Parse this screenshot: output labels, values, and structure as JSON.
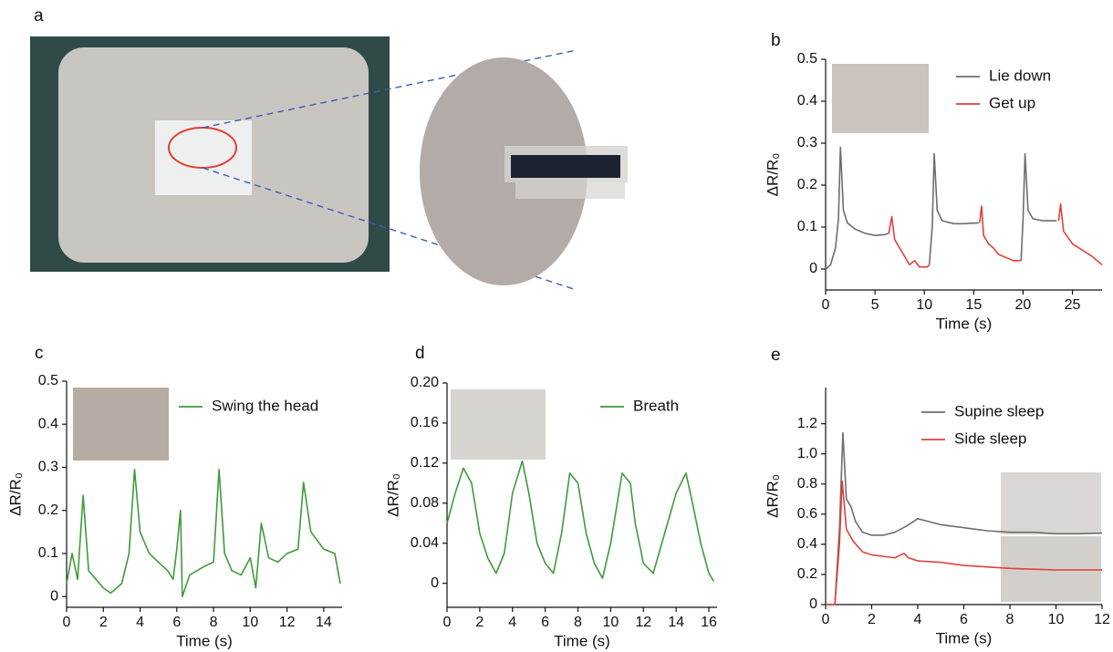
{
  "panel_a": {
    "label": "a"
  },
  "chart_data": [
    {
      "type": "line",
      "panel": "b",
      "xlabel": "Time (s)",
      "ylabel": "ΔR/R₀",
      "xlim": [
        0,
        28
      ],
      "xticks": [
        0,
        5,
        10,
        15,
        20,
        25
      ],
      "ylim": [
        -0.05,
        0.5
      ],
      "yticks": [
        0,
        0.1,
        0.2,
        0.3,
        0.4,
        0.5
      ],
      "series": [
        {
          "name": "Lie down",
          "color": "#6d6d6d",
          "x": [
            0,
            0.5,
            1.0,
            1.3,
            1.5,
            1.8,
            2.2,
            3,
            4,
            5,
            6,
            6.4,
            8,
            10.5,
            10.8,
            11.0,
            11.3,
            11.8,
            13,
            14,
            15.5,
            17,
            19.8,
            20.0,
            20.2,
            20.5,
            21,
            22,
            23.4
          ],
          "values": [
            0,
            0.01,
            0.05,
            0.12,
            0.29,
            0.14,
            0.11,
            0.095,
            0.085,
            0.08,
            0.082,
            0.085,
            null,
            0.01,
            0.1,
            0.275,
            0.14,
            0.115,
            0.108,
            0.108,
            0.11,
            null,
            0.02,
            0.12,
            0.275,
            0.14,
            0.12,
            0.115,
            0.115
          ]
        },
        {
          "name": "Get up",
          "color": "#e0413a",
          "x": [
            6.4,
            6.7,
            7.0,
            7.5,
            8,
            8.5,
            9,
            9.5,
            10.3,
            10.5,
            13,
            15.6,
            15.8,
            16,
            16.5,
            17,
            17.5,
            18,
            19,
            19.8,
            21.5,
            23.6,
            23.8,
            24.1,
            25,
            26,
            27,
            28
          ],
          "values": [
            0.085,
            0.125,
            0.07,
            0.05,
            0.03,
            0.01,
            0.02,
            0.005,
            0.005,
            0.01,
            null,
            0.11,
            0.15,
            0.08,
            0.06,
            0.05,
            0.035,
            0.03,
            0.02,
            0.02,
            null,
            0.115,
            0.155,
            0.09,
            0.06,
            0.045,
            0.03,
            0.01
          ]
        }
      ]
    },
    {
      "type": "line",
      "panel": "c",
      "xlabel": "Time (s)",
      "ylabel": "ΔR/R₀",
      "xlim": [
        0,
        15
      ],
      "xticks": [
        0,
        2,
        4,
        6,
        8,
        10,
        12,
        14
      ],
      "ylim": [
        -0.025,
        0.5
      ],
      "yticks": [
        0,
        0.1,
        0.2,
        0.3,
        0.4,
        0.5
      ],
      "series": [
        {
          "name": "Swing the head",
          "color": "#3f9a3a",
          "x": [
            0,
            0.3,
            0.6,
            0.9,
            1.2,
            1.6,
            2,
            2.4,
            3,
            3.4,
            3.7,
            4,
            4.5,
            5,
            5.5,
            5.8,
            6.0,
            6.2,
            6.3,
            6.7,
            7.5,
            8,
            8.3,
            8.6,
            9,
            9.5,
            10,
            10.3,
            10.6,
            11,
            11.5,
            12,
            12.6,
            12.9,
            13.3,
            14,
            14.6,
            14.9
          ],
          "values": [
            0.03,
            0.1,
            0.04,
            0.235,
            0.06,
            0.04,
            0.02,
            0.008,
            0.03,
            0.1,
            0.295,
            0.15,
            0.1,
            0.08,
            0.06,
            0.04,
            0.11,
            0.2,
            0.0,
            0.05,
            0.07,
            0.08,
            0.295,
            0.1,
            0.06,
            0.05,
            0.09,
            0.02,
            0.17,
            0.09,
            0.08,
            0.1,
            0.11,
            0.265,
            0.15,
            0.11,
            0.1,
            0.03
          ]
        }
      ]
    },
    {
      "type": "line",
      "panel": "d",
      "xlabel": "Time (s)",
      "ylabel": "ΔR/R₀",
      "xlim": [
        0,
        16.5
      ],
      "xticks": [
        0,
        2,
        4,
        6,
        8,
        10,
        12,
        14,
        16
      ],
      "ylim": [
        -0.024,
        0.2
      ],
      "yticks": [
        0,
        0.04,
        0.08,
        0.12,
        0.16,
        {
          "value": 0.2,
          "label": "0.20"
        }
      ],
      "series": [
        {
          "name": "Breath",
          "color": "#3f9a3a",
          "x": [
            0,
            0.5,
            1,
            1.5,
            2,
            2.5,
            3,
            3.5,
            4,
            4.6,
            5,
            5.5,
            6,
            6.5,
            7,
            7.5,
            8,
            8.5,
            9,
            9.5,
            10,
            10.7,
            11.2,
            11.5,
            12,
            12.6,
            13.3,
            14,
            14.6,
            15,
            15.5,
            16,
            16.3
          ],
          "values": [
            0.06,
            0.09,
            0.115,
            0.1,
            0.05,
            0.025,
            0.01,
            0.03,
            0.09,
            0.122,
            0.09,
            0.04,
            0.02,
            0.01,
            0.05,
            0.11,
            0.1,
            0.05,
            0.02,
            0.005,
            0.04,
            0.11,
            0.1,
            0.06,
            0.02,
            0.01,
            0.05,
            0.09,
            0.11,
            0.08,
            0.04,
            0.01,
            0.002
          ]
        }
      ]
    },
    {
      "type": "line",
      "panel": "e",
      "xlabel": "Time (s)",
      "ylabel": "ΔR/R₀",
      "xlim": [
        0,
        12
      ],
      "xticks": [
        0,
        2,
        4,
        6,
        8,
        10,
        12
      ],
      "ylim": [
        0,
        1.44
      ],
      "yticks": [
        0,
        0.2,
        0.4,
        0.6,
        0.8,
        {
          "value": 1,
          "label": "1.0"
        },
        1.2
      ],
      "series": [
        {
          "name": "Supine sleep",
          "color": "#6d6d6d",
          "x": [
            0,
            0.4,
            0.6,
            0.75,
            0.9,
            1.1,
            1.3,
            1.6,
            2,
            2.5,
            3,
            3.5,
            4,
            4.5,
            5,
            6,
            7,
            8,
            9,
            10,
            11,
            12
          ],
          "values": [
            0,
            0,
            0.5,
            1.14,
            0.7,
            0.65,
            0.55,
            0.48,
            0.46,
            0.46,
            0.48,
            0.52,
            0.57,
            0.55,
            0.53,
            0.51,
            0.49,
            0.48,
            0.48,
            0.47,
            0.47,
            0.475
          ]
        },
        {
          "name": "Side sleep",
          "color": "#e0413a",
          "x": [
            0,
            0.4,
            0.6,
            0.72,
            0.9,
            1.2,
            1.6,
            2,
            2.5,
            3,
            3.4,
            3.6,
            4,
            5,
            6,
            7,
            8,
            9,
            10,
            11,
            12
          ],
          "values": [
            0,
            0,
            0.4,
            0.82,
            0.5,
            0.42,
            0.35,
            0.33,
            0.32,
            0.31,
            0.34,
            0.31,
            0.29,
            0.28,
            0.26,
            0.25,
            0.24,
            0.235,
            0.23,
            0.23,
            0.23
          ]
        }
      ]
    }
  ]
}
